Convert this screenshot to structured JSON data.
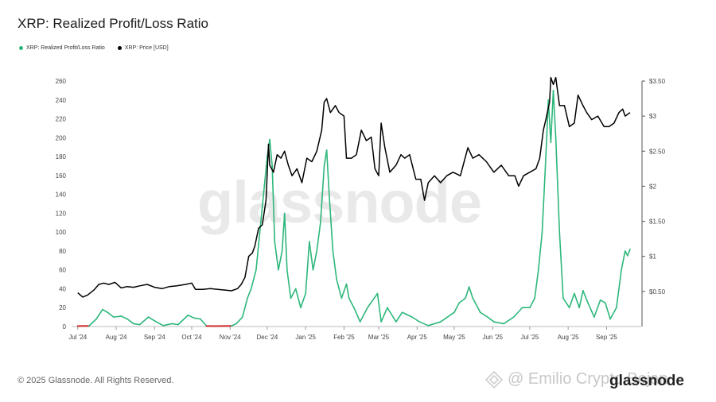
{
  "header": {
    "title": "XRP: Realized Profit/Loss Ratio"
  },
  "legend": [
    {
      "label": "XRP: Realized Profit/Loss Ratio",
      "color": "#2db77b"
    },
    {
      "label": "XRP: Price [USD]",
      "color": "#000000"
    }
  ],
  "watermark": "glassnode",
  "footer": {
    "copyright": "© 2025 Glassnode. All Rights Reserved.",
    "overlay_text": "@ Emilio Crypto Bojan",
    "logo_text": "glassnode"
  },
  "colors": {
    "ratio_profit": "#2db77b",
    "ratio_loss": "#d22b2b",
    "price": "#000000",
    "axis": "#555555"
  },
  "chart_data": {
    "type": "line",
    "x_ticks": [
      "Jul '24",
      "Aug '24",
      "Sep '24",
      "Oct '24",
      "Nov '24",
      "Dec '24",
      "Jan '25",
      "Feb '25",
      "Mar '25",
      "Apr '25",
      "May '25",
      "Jun '25",
      "Jul '25",
      "Aug '25",
      "Sep '25"
    ],
    "y_left": {
      "ticks": [
        "0",
        "20",
        "40",
        "60",
        "80",
        "100",
        "120",
        "140",
        "160",
        "180",
        "200",
        "220",
        "240",
        "260"
      ],
      "range": [
        0,
        260
      ]
    },
    "y_right": {
      "ticks": [
        "$0.50",
        "$1",
        "$1.50",
        "$2",
        "$2.50",
        "$3",
        "$3.50"
      ],
      "range": [
        0,
        3.5
      ]
    },
    "series": [
      {
        "name": "XRP: Realized Profit/Loss Ratio",
        "axis": "left",
        "color": "#2db77b",
        "loss_color": "#d22b2b",
        "loss_threshold": 1,
        "points": [
          [
            "2024-07-01",
            0.5
          ],
          [
            "2024-07-10",
            0.6
          ],
          [
            "2024-07-16",
            8
          ],
          [
            "2024-07-21",
            18
          ],
          [
            "2024-07-25",
            15
          ],
          [
            "2024-07-30",
            10
          ],
          [
            "2024-08-05",
            11
          ],
          [
            "2024-08-10",
            8
          ],
          [
            "2024-08-15",
            3
          ],
          [
            "2024-08-20",
            2
          ],
          [
            "2024-08-27",
            10
          ],
          [
            "2024-09-01",
            6
          ],
          [
            "2024-09-08",
            1
          ],
          [
            "2024-09-15",
            3
          ],
          [
            "2024-09-20",
            2
          ],
          [
            "2024-09-28",
            12
          ],
          [
            "2024-10-03",
            9
          ],
          [
            "2024-10-08",
            8
          ],
          [
            "2024-10-13",
            0.5
          ],
          [
            "2024-10-20",
            0.4
          ],
          [
            "2024-10-25",
            0.5
          ],
          [
            "2024-11-02",
            0.6
          ],
          [
            "2024-11-06",
            3
          ],
          [
            "2024-11-11",
            10
          ],
          [
            "2024-11-15",
            30
          ],
          [
            "2024-11-18",
            40
          ],
          [
            "2024-11-22",
            60
          ],
          [
            "2024-11-25",
            100
          ],
          [
            "2024-11-28",
            140
          ],
          [
            "2024-12-01",
            180
          ],
          [
            "2024-12-03",
            198
          ],
          [
            "2024-12-05",
            170
          ],
          [
            "2024-12-07",
            90
          ],
          [
            "2024-12-10",
            60
          ],
          [
            "2024-12-13",
            80
          ],
          [
            "2024-12-15",
            120
          ],
          [
            "2024-12-17",
            60
          ],
          [
            "2024-12-20",
            30
          ],
          [
            "2024-12-24",
            40
          ],
          [
            "2024-12-28",
            20
          ],
          [
            "2025-01-01",
            35
          ],
          [
            "2025-01-04",
            90
          ],
          [
            "2025-01-07",
            60
          ],
          [
            "2025-01-10",
            80
          ],
          [
            "2025-01-13",
            110
          ],
          [
            "2025-01-16",
            170
          ],
          [
            "2025-01-18",
            187
          ],
          [
            "2025-01-20",
            140
          ],
          [
            "2025-01-23",
            80
          ],
          [
            "2025-01-26",
            50
          ],
          [
            "2025-01-30",
            30
          ],
          [
            "2025-02-03",
            45
          ],
          [
            "2025-02-05",
            30
          ],
          [
            "2025-02-09",
            20
          ],
          [
            "2025-02-14",
            5
          ],
          [
            "2025-02-20",
            20
          ],
          [
            "2025-02-28",
            35
          ],
          [
            "2025-03-03",
            5
          ],
          [
            "2025-03-08",
            20
          ],
          [
            "2025-03-15",
            5
          ],
          [
            "2025-03-20",
            15
          ],
          [
            "2025-03-28",
            10
          ],
          [
            "2025-04-03",
            5
          ],
          [
            "2025-04-10",
            1
          ],
          [
            "2025-04-20",
            5
          ],
          [
            "2025-05-01",
            15
          ],
          [
            "2025-05-05",
            25
          ],
          [
            "2025-05-10",
            30
          ],
          [
            "2025-05-13",
            42
          ],
          [
            "2025-05-16",
            30
          ],
          [
            "2025-05-22",
            15
          ],
          [
            "2025-05-28",
            10
          ],
          [
            "2025-06-02",
            5
          ],
          [
            "2025-06-10",
            3
          ],
          [
            "2025-06-18",
            10
          ],
          [
            "2025-06-25",
            20
          ],
          [
            "2025-07-01",
            20
          ],
          [
            "2025-07-05",
            30
          ],
          [
            "2025-07-08",
            60
          ],
          [
            "2025-07-11",
            100
          ],
          [
            "2025-07-14",
            180
          ],
          [
            "2025-07-16",
            240
          ],
          [
            "2025-07-18",
            195
          ],
          [
            "2025-07-20",
            250
          ],
          [
            "2025-07-22",
            200
          ],
          [
            "2025-07-25",
            100
          ],
          [
            "2025-07-28",
            30
          ],
          [
            "2025-08-02",
            20
          ],
          [
            "2025-08-06",
            35
          ],
          [
            "2025-08-10",
            20
          ],
          [
            "2025-08-13",
            38
          ],
          [
            "2025-08-17",
            25
          ],
          [
            "2025-08-22",
            10
          ],
          [
            "2025-08-27",
            28
          ],
          [
            "2025-08-31",
            25
          ],
          [
            "2025-09-04",
            8
          ],
          [
            "2025-09-09",
            20
          ],
          [
            "2025-09-13",
            60
          ],
          [
            "2025-09-16",
            80
          ],
          [
            "2025-09-18",
            75
          ],
          [
            "2025-09-20",
            82
          ]
        ]
      },
      {
        "name": "XRP: Price [USD]",
        "axis": "right",
        "color": "#000000",
        "points": [
          [
            "2024-07-01",
            0.48
          ],
          [
            "2024-07-05",
            0.42
          ],
          [
            "2024-07-09",
            0.45
          ],
          [
            "2024-07-14",
            0.52
          ],
          [
            "2024-07-18",
            0.6
          ],
          [
            "2024-07-22",
            0.62
          ],
          [
            "2024-07-26",
            0.6
          ],
          [
            "2024-07-31",
            0.63
          ],
          [
            "2024-08-05",
            0.55
          ],
          [
            "2024-08-10",
            0.57
          ],
          [
            "2024-08-15",
            0.56
          ],
          [
            "2024-08-20",
            0.58
          ],
          [
            "2024-08-26",
            0.6
          ],
          [
            "2024-09-01",
            0.56
          ],
          [
            "2024-09-07",
            0.54
          ],
          [
            "2024-09-13",
            0.57
          ],
          [
            "2024-09-19",
            0.58
          ],
          [
            "2024-09-26",
            0.6
          ],
          [
            "2024-10-01",
            0.62
          ],
          [
            "2024-10-04",
            0.53
          ],
          [
            "2024-10-10",
            0.53
          ],
          [
            "2024-10-16",
            0.54
          ],
          [
            "2024-10-22",
            0.53
          ],
          [
            "2024-10-28",
            0.52
          ],
          [
            "2024-11-02",
            0.51
          ],
          [
            "2024-11-07",
            0.54
          ],
          [
            "2024-11-10",
            0.6
          ],
          [
            "2024-11-13",
            0.7
          ],
          [
            "2024-11-16",
            1.0
          ],
          [
            "2024-11-19",
            1.05
          ],
          [
            "2024-11-21",
            1.15
          ],
          [
            "2024-11-24",
            1.4
          ],
          [
            "2024-11-27",
            1.45
          ],
          [
            "2024-11-30",
            1.8
          ],
          [
            "2024-12-02",
            2.6
          ],
          [
            "2024-12-03",
            2.3
          ],
          [
            "2024-12-06",
            2.2
          ],
          [
            "2024-12-09",
            2.45
          ],
          [
            "2024-12-12",
            2.4
          ],
          [
            "2024-12-15",
            2.5
          ],
          [
            "2024-12-18",
            2.3
          ],
          [
            "2024-12-21",
            2.15
          ],
          [
            "2024-12-25",
            2.25
          ],
          [
            "2024-12-29",
            2.05
          ],
          [
            "2025-01-02",
            2.4
          ],
          [
            "2025-01-06",
            2.35
          ],
          [
            "2025-01-10",
            2.5
          ],
          [
            "2025-01-14",
            2.8
          ],
          [
            "2025-01-16",
            3.2
          ],
          [
            "2025-01-18",
            3.25
          ],
          [
            "2025-01-21",
            3.05
          ],
          [
            "2025-01-25",
            3.15
          ],
          [
            "2025-01-28",
            3.05
          ],
          [
            "2025-02-01",
            3.0
          ],
          [
            "2025-02-03",
            2.4
          ],
          [
            "2025-02-07",
            2.4
          ],
          [
            "2025-02-11",
            2.45
          ],
          [
            "2025-02-15",
            2.8
          ],
          [
            "2025-02-19",
            2.65
          ],
          [
            "2025-02-23",
            2.7
          ],
          [
            "2025-02-26",
            2.25
          ],
          [
            "2025-03-01",
            2.15
          ],
          [
            "2025-03-03",
            2.9
          ],
          [
            "2025-03-06",
            2.55
          ],
          [
            "2025-03-10",
            2.2
          ],
          [
            "2025-03-15",
            2.3
          ],
          [
            "2025-03-19",
            2.45
          ],
          [
            "2025-03-22",
            2.4
          ],
          [
            "2025-03-26",
            2.45
          ],
          [
            "2025-03-31",
            2.1
          ],
          [
            "2025-04-04",
            2.1
          ],
          [
            "2025-04-07",
            1.8
          ],
          [
            "2025-04-10",
            2.05
          ],
          [
            "2025-04-15",
            2.15
          ],
          [
            "2025-04-20",
            2.05
          ],
          [
            "2025-04-25",
            2.15
          ],
          [
            "2025-04-30",
            2.2
          ],
          [
            "2025-05-06",
            2.15
          ],
          [
            "2025-05-09",
            2.35
          ],
          [
            "2025-05-12",
            2.55
          ],
          [
            "2025-05-16",
            2.4
          ],
          [
            "2025-05-21",
            2.45
          ],
          [
            "2025-05-27",
            2.35
          ],
          [
            "2025-06-02",
            2.2
          ],
          [
            "2025-06-08",
            2.3
          ],
          [
            "2025-06-14",
            2.15
          ],
          [
            "2025-06-19",
            2.15
          ],
          [
            "2025-06-22",
            2.0
          ],
          [
            "2025-06-26",
            2.15
          ],
          [
            "2025-07-01",
            2.2
          ],
          [
            "2025-07-06",
            2.25
          ],
          [
            "2025-07-09",
            2.4
          ],
          [
            "2025-07-12",
            2.8
          ],
          [
            "2025-07-14",
            2.95
          ],
          [
            "2025-07-17",
            3.2
          ],
          [
            "2025-07-18",
            3.55
          ],
          [
            "2025-07-20",
            3.45
          ],
          [
            "2025-07-22",
            3.55
          ],
          [
            "2025-07-25",
            3.15
          ],
          [
            "2025-07-29",
            3.15
          ],
          [
            "2025-08-02",
            2.85
          ],
          [
            "2025-08-06",
            2.9
          ],
          [
            "2025-08-09",
            3.3
          ],
          [
            "2025-08-13",
            3.15
          ],
          [
            "2025-08-16",
            3.05
          ],
          [
            "2025-08-20",
            2.95
          ],
          [
            "2025-08-25",
            3.0
          ],
          [
            "2025-08-30",
            2.85
          ],
          [
            "2025-09-03",
            2.85
          ],
          [
            "2025-09-07",
            2.9
          ],
          [
            "2025-09-11",
            3.05
          ],
          [
            "2025-09-14",
            3.1
          ],
          [
            "2025-09-16",
            3.0
          ],
          [
            "2025-09-20",
            3.05
          ]
        ]
      }
    ]
  }
}
